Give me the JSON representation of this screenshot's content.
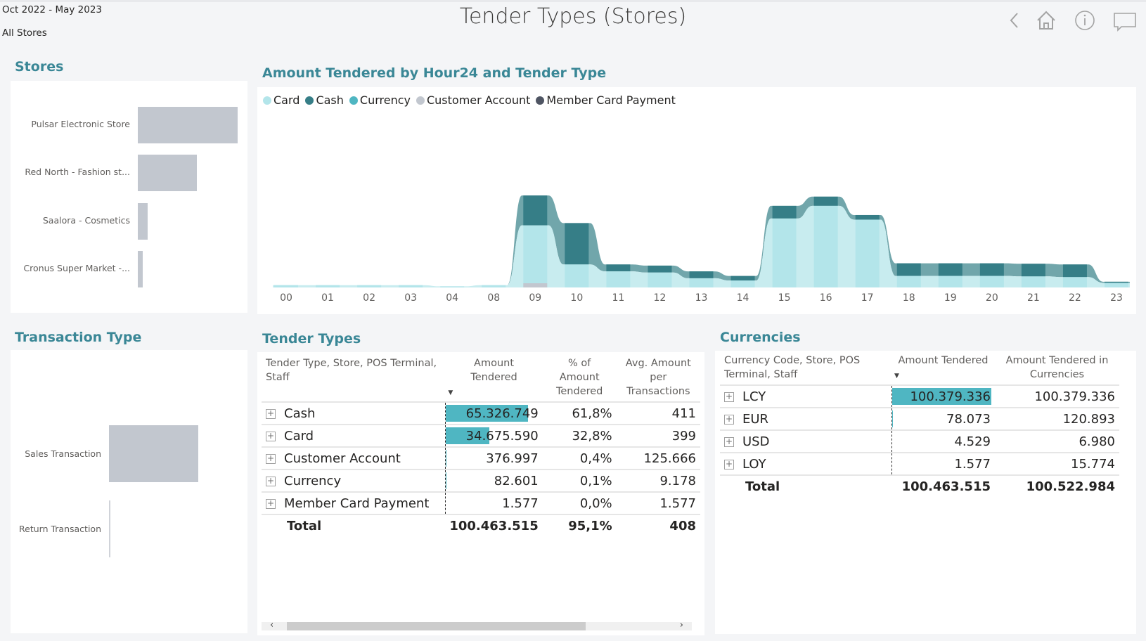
{
  "header": {
    "date_range": "Oct 2022 - May 2023",
    "store_filter": "All Stores",
    "title": "Tender Types (Stores)",
    "nav_icons": [
      "back-icon",
      "home-icon",
      "info-icon",
      "comment-icon"
    ]
  },
  "stores": {
    "title": "Stores",
    "items": [
      {
        "label": "Pulsar Electronic Store",
        "value": 1.0
      },
      {
        "label": "Red North - Fashion st...",
        "value": 0.59
      },
      {
        "label": "Saalora - Cosmetics",
        "value": 0.1
      },
      {
        "label": "Cronus Super Market -...",
        "value": 0.05
      }
    ]
  },
  "transaction_type": {
    "title": "Transaction Type",
    "items": [
      {
        "label": "Sales Transaction",
        "value": 1.0
      },
      {
        "label": "Return Transaction",
        "value": 0.0
      }
    ]
  },
  "chart_data": {
    "type": "area",
    "title": "Amount Tendered by Hour24 and Tender Type",
    "xlabel": "",
    "ylabel": "",
    "legend_position": "top-left",
    "x": [
      "00",
      "01",
      "02",
      "03",
      "04",
      "08",
      "09",
      "10",
      "11",
      "12",
      "13",
      "14",
      "15",
      "16",
      "17",
      "18",
      "19",
      "20",
      "21",
      "22",
      "23"
    ],
    "series": [
      {
        "name": "Customer Account",
        "color": "#c2c7cf",
        "values": [
          0,
          0,
          0,
          0,
          0,
          0,
          0.15,
          0,
          0,
          0,
          0,
          0,
          0,
          0,
          0,
          0,
          0,
          0,
          0,
          0,
          0
        ]
      },
      {
        "name": "Card",
        "color": "#b3e5ea",
        "values": [
          0.1,
          0.1,
          0.1,
          0.1,
          0.05,
          0.1,
          2.7,
          1.0,
          0.7,
          0.65,
          0.4,
          0.3,
          3.0,
          3.55,
          2.95,
          0.5,
          0.5,
          0.5,
          0.48,
          0.45,
          0.2
        ]
      },
      {
        "name": "Cash",
        "color": "#367e87",
        "values": [
          0.1,
          0.1,
          0.1,
          0.1,
          0.05,
          0.1,
          4.0,
          2.8,
          1.0,
          0.95,
          0.7,
          0.5,
          3.55,
          3.95,
          3.15,
          1.05,
          1.05,
          1.05,
          1.03,
          1.0,
          0.25
        ]
      },
      {
        "name": "Currency",
        "color": "#4fb6c2",
        "values": [
          0,
          0,
          0,
          0,
          0,
          0,
          0,
          0,
          0,
          0,
          0,
          0,
          0,
          0,
          0,
          0,
          0,
          0,
          0,
          0,
          0
        ]
      },
      {
        "name": "Member Card Payment",
        "color": "#4f5563",
        "values": [
          0,
          0,
          0,
          0,
          0,
          0,
          0,
          0,
          0,
          0,
          0,
          0,
          0,
          0,
          0,
          0,
          0,
          0,
          0,
          0,
          0
        ]
      }
    ],
    "legend": [
      "Card",
      "Cash",
      "Currency",
      "Customer Account",
      "Member Card Payment"
    ],
    "ylim": [
      0,
      7
    ]
  },
  "tender_types": {
    "title": "Tender Types",
    "columns": [
      "Tender Type, Store, POS Terminal, Staff",
      "Amount Tendered",
      "% of Amount Tendered",
      "Avg. Amount per Transactions"
    ],
    "rows": [
      {
        "name": "Cash",
        "amount": "65.326.749",
        "pct": "61,8%",
        "avg": "411",
        "bar": 0.651
      },
      {
        "name": "Card",
        "amount": "34.675.590",
        "pct": "32,8%",
        "avg": "399",
        "bar": 0.345
      },
      {
        "name": "Customer Account",
        "amount": "376.997",
        "pct": "0,4%",
        "avg": "125.666",
        "bar": 0.004
      },
      {
        "name": "Currency",
        "amount": "82.601",
        "pct": "0,1%",
        "avg": "9.178",
        "bar": 0.001
      },
      {
        "name": "Member Card Payment",
        "amount": "1.577",
        "pct": "0,0%",
        "avg": "1.577",
        "bar": 0.0
      }
    ],
    "total": {
      "label": "Total",
      "amount": "100.463.515",
      "pct": "95,1%",
      "avg": "408"
    }
  },
  "currencies": {
    "title": "Currencies",
    "columns": [
      "Currency Code, Store, POS Terminal, Staff",
      "Amount Tendered",
      "Amount Tendered in Currencies"
    ],
    "rows": [
      {
        "name": "LCY",
        "amount": "100.379.336",
        "amount_cur": "100.379.336",
        "bar": 1.0
      },
      {
        "name": "EUR",
        "amount": "78.073",
        "amount_cur": "120.893",
        "bar": 0.0008
      },
      {
        "name": "USD",
        "amount": "4.529",
        "amount_cur": "6.980",
        "bar": 0.0
      },
      {
        "name": "LOY",
        "amount": "1.577",
        "amount_cur": "15.774",
        "bar": 0.0
      }
    ],
    "total": {
      "label": "Total",
      "amount": "100.463.515",
      "amount_cur": "100.522.984"
    }
  },
  "scrollbar": {
    "left_arrow": "‹",
    "right_arrow": "›"
  }
}
